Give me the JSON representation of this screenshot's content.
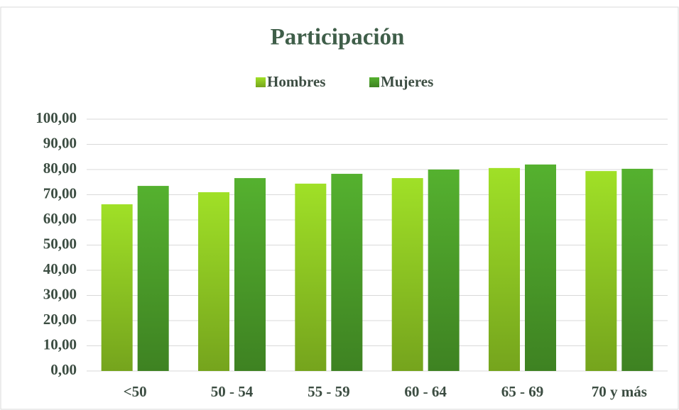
{
  "chart_data": {
    "type": "bar",
    "title": "Participación",
    "categories": [
      "<50",
      "50 - 54",
      "55 - 59",
      "60 - 64",
      "65 - 69",
      "70 y más"
    ],
    "series": [
      {
        "name": "Hombres",
        "color": "#8fc823",
        "values": [
          66.2,
          71.0,
          74.4,
          76.6,
          80.6,
          79.4
        ]
      },
      {
        "name": "Mujeres",
        "color": "#4c9e2a",
        "values": [
          73.5,
          76.6,
          78.3,
          80.0,
          82.0,
          80.3
        ]
      }
    ],
    "ylim": [
      0,
      100
    ],
    "yticks": [
      {
        "value": 0,
        "label": "0,00"
      },
      {
        "value": 10,
        "label": "10,00"
      },
      {
        "value": 20,
        "label": "20,00"
      },
      {
        "value": 30,
        "label": "30,00"
      },
      {
        "value": 40,
        "label": "40,00"
      },
      {
        "value": 50,
        "label": "50,00"
      },
      {
        "value": 60,
        "label": "60,00"
      },
      {
        "value": 70,
        "label": "70,00"
      },
      {
        "value": 80,
        "label": "80,00"
      },
      {
        "value": 90,
        "label": "90,00"
      },
      {
        "value": 100,
        "label": "100,00"
      }
    ],
    "grid": true,
    "legend": "top"
  }
}
